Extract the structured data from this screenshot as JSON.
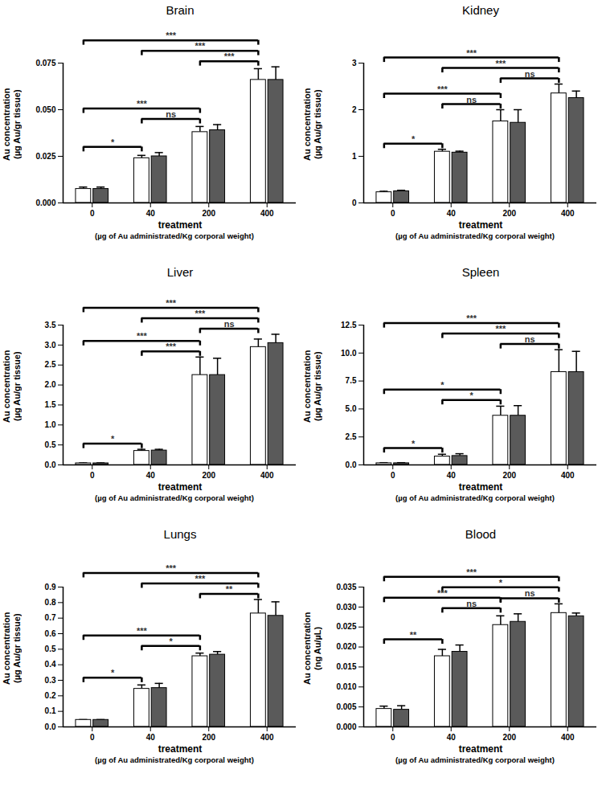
{
  "chart_data": [
    {
      "type": "bar",
      "title": "Brain",
      "x_label": "treatment",
      "x_sublabel": "(µg of Au administrated/Kg corporal weight)",
      "y_label": "Au concentration\n(µg Au/gr tissue)",
      "categories": [
        "0",
        "40",
        "200",
        "400"
      ],
      "series": [
        {
          "color": "#ffffff",
          "values": [
            0.0075,
            0.024,
            0.038,
            0.066
          ],
          "errors": [
            0.001,
            0.0015,
            0.003,
            0.006
          ]
        },
        {
          "color": "#5a5a5a",
          "values": [
            0.0075,
            0.025,
            0.039,
            0.066
          ],
          "errors": [
            0.001,
            0.002,
            0.003,
            0.007
          ]
        }
      ],
      "ylim": [
        0,
        0.075
      ],
      "yticks": [
        {
          "value": 0,
          "label": "0.000"
        },
        {
          "value": 0.025,
          "label": "0.025"
        },
        {
          "value": 0.05,
          "label": "0.050"
        },
        {
          "value": 0.075,
          "label": "0.075"
        }
      ],
      "significance": [
        {
          "from": "0",
          "to": "40",
          "label": "*"
        },
        {
          "from": "40",
          "to": "200",
          "label": "ns"
        },
        {
          "from": "200",
          "to": "400",
          "label": "***"
        },
        {
          "from": "0",
          "to": "200",
          "label": "***"
        },
        {
          "from": "40",
          "to": "400",
          "label": "***"
        },
        {
          "from": "0",
          "to": "400",
          "label": "***"
        }
      ]
    },
    {
      "type": "bar",
      "title": "Kidney",
      "x_label": "treatment",
      "x_sublabel": "(µg of Au administrated/Kg corporal weight)",
      "y_label": "Au concentration\n(µg Au/gr tissue)",
      "categories": [
        "0",
        "40",
        "200",
        "400"
      ],
      "series": [
        {
          "color": "#ffffff",
          "values": [
            0.23,
            1.1,
            1.75,
            2.35
          ],
          "errors": [
            0.02,
            0.05,
            0.25,
            0.2
          ]
        },
        {
          "color": "#5a5a5a",
          "values": [
            0.25,
            1.08,
            1.72,
            2.25
          ],
          "errors": [
            0.02,
            0.03,
            0.28,
            0.15
          ]
        }
      ],
      "ylim": [
        0,
        3
      ],
      "yticks": [
        0,
        1,
        2,
        3
      ],
      "significance": [
        {
          "from": "0",
          "to": "40",
          "label": "*"
        },
        {
          "from": "40",
          "to": "200",
          "label": "ns"
        },
        {
          "from": "200",
          "to": "400",
          "label": "ns"
        },
        {
          "from": "0",
          "to": "200",
          "label": "***"
        },
        {
          "from": "40",
          "to": "400",
          "label": "***"
        },
        {
          "from": "0",
          "to": "400",
          "label": "***"
        }
      ]
    },
    {
      "type": "bar",
      "title": "Liver",
      "x_label": "treatment",
      "x_sublabel": "(µg of Au administrated/Kg corporal weight)",
      "y_label": "Au concentration\n(µg Au/gr tissue)",
      "categories": [
        "0",
        "40",
        "200",
        "400"
      ],
      "series": [
        {
          "color": "#ffffff",
          "values": [
            0.04,
            0.35,
            2.25,
            2.95
          ],
          "errors": [
            0.01,
            0.04,
            0.45,
            0.2
          ]
        },
        {
          "color": "#5a5a5a",
          "values": [
            0.04,
            0.36,
            2.25,
            3.05
          ],
          "errors": [
            0.01,
            0.03,
            0.42,
            0.22
          ]
        }
      ],
      "ylim": [
        0,
        3.5
      ],
      "yticks": [
        {
          "value": 0,
          "label": "0.0"
        },
        0.5,
        {
          "value": 1,
          "label": "1.0"
        },
        1.5,
        {
          "value": 2,
          "label": "2.0"
        },
        2.5,
        {
          "value": 3,
          "label": "3.0"
        },
        3.5
      ],
      "significance": [
        {
          "from": "0",
          "to": "40",
          "label": "*"
        },
        {
          "from": "40",
          "to": "200",
          "label": "***"
        },
        {
          "from": "200",
          "to": "400",
          "label": "ns"
        },
        {
          "from": "0",
          "to": "200",
          "label": "***"
        },
        {
          "from": "40",
          "to": "400",
          "label": "***"
        },
        {
          "from": "0",
          "to": "400",
          "label": "***"
        }
      ]
    },
    {
      "type": "bar",
      "title": "Spleen",
      "x_label": "treatment",
      "x_sublabel": "(µg of Au administrated/Kg corporal weight)",
      "y_label": "Au concentration\n(µg Au/gr tissue)",
      "categories": [
        "0",
        "40",
        "200",
        "400"
      ],
      "series": [
        {
          "color": "#ffffff",
          "values": [
            0.15,
            0.75,
            4.4,
            8.3
          ],
          "errors": [
            0.05,
            0.2,
            0.85,
            2.0
          ]
        },
        {
          "color": "#5a5a5a",
          "values": [
            0.15,
            0.8,
            4.4,
            8.3
          ],
          "errors": [
            0.05,
            0.2,
            0.9,
            1.85
          ]
        }
      ],
      "ylim": [
        0,
        12.5
      ],
      "yticks": [
        {
          "value": 0,
          "label": "0.0"
        },
        2.5,
        {
          "value": 5,
          "label": "5.0"
        },
        7.5,
        {
          "value": 10,
          "label": "10.0"
        },
        12.5
      ],
      "significance": [
        {
          "from": "0",
          "to": "40",
          "label": "*"
        },
        {
          "from": "40",
          "to": "200",
          "label": "*"
        },
        {
          "from": "200",
          "to": "400",
          "label": "ns"
        },
        {
          "from": "0",
          "to": "200",
          "label": "*"
        },
        {
          "from": "40",
          "to": "400",
          "label": "***"
        },
        {
          "from": "0",
          "to": "400",
          "label": "***"
        }
      ]
    },
    {
      "type": "bar",
      "title": "Lungs",
      "x_label": "treatment",
      "x_sublabel": "(µg of Au administrated/Kg corporal weight)",
      "y_label": "Au concentration\n(µg Au/gr tissue)",
      "categories": [
        "0",
        "40",
        "200",
        "400"
      ],
      "series": [
        {
          "color": "#ffffff",
          "values": [
            0.045,
            0.245,
            0.455,
            0.73
          ],
          "errors": [
            0.002,
            0.025,
            0.02,
            0.09
          ]
        },
        {
          "color": "#5a5a5a",
          "values": [
            0.045,
            0.25,
            0.465,
            0.715
          ],
          "errors": [
            0.002,
            0.03,
            0.02,
            0.09
          ]
        }
      ],
      "ylim": [
        0,
        0.9
      ],
      "yticks": [
        {
          "value": 0,
          "label": "0.0"
        },
        0.1,
        0.2,
        0.3,
        0.4,
        0.5,
        0.6,
        0.7,
        0.8,
        0.9
      ],
      "significance": [
        {
          "from": "0",
          "to": "40",
          "label": "*"
        },
        {
          "from": "40",
          "to": "200",
          "label": "*"
        },
        {
          "from": "200",
          "to": "400",
          "label": "**"
        },
        {
          "from": "0",
          "to": "200",
          "label": "***"
        },
        {
          "from": "40",
          "to": "400",
          "label": "***"
        },
        {
          "from": "0",
          "to": "400",
          "label": "***"
        }
      ]
    },
    {
      "type": "bar",
      "title": "Blood",
      "x_label": "treatment",
      "x_sublabel": "(µg of Au administrated/Kg corporal weight)",
      "y_label": "Au concentration\n(ng Au/µL)",
      "categories": [
        "0",
        "40",
        "200",
        "400"
      ],
      "series": [
        {
          "color": "#ffffff",
          "values": [
            0.0045,
            0.0177,
            0.0255,
            0.0285
          ],
          "errors": [
            0.0007,
            0.0017,
            0.0023,
            0.0023
          ]
        },
        {
          "color": "#5a5a5a",
          "values": [
            0.0043,
            0.0188,
            0.0263,
            0.0277
          ],
          "errors": [
            0.001,
            0.0017,
            0.002,
            0.0008
          ]
        }
      ],
      "ylim": [
        0,
        0.035
      ],
      "yticks": [
        {
          "value": 0,
          "label": "0.000"
        },
        0.005,
        {
          "value": 0.01,
          "label": "0.010"
        },
        0.015,
        {
          "value": 0.02,
          "label": "0.020"
        },
        0.025,
        {
          "value": 0.03,
          "label": "0.030"
        },
        0.035
      ],
      "significance": [
        {
          "from": "0",
          "to": "40",
          "label": "**"
        },
        {
          "from": "40",
          "to": "200",
          "label": "ns"
        },
        {
          "from": "200",
          "to": "400",
          "label": "ns"
        },
        {
          "from": "0",
          "to": "200",
          "label": "***"
        },
        {
          "from": "40",
          "to": "400",
          "label": "*"
        },
        {
          "from": "0",
          "to": "400",
          "label": "***"
        }
      ]
    }
  ]
}
